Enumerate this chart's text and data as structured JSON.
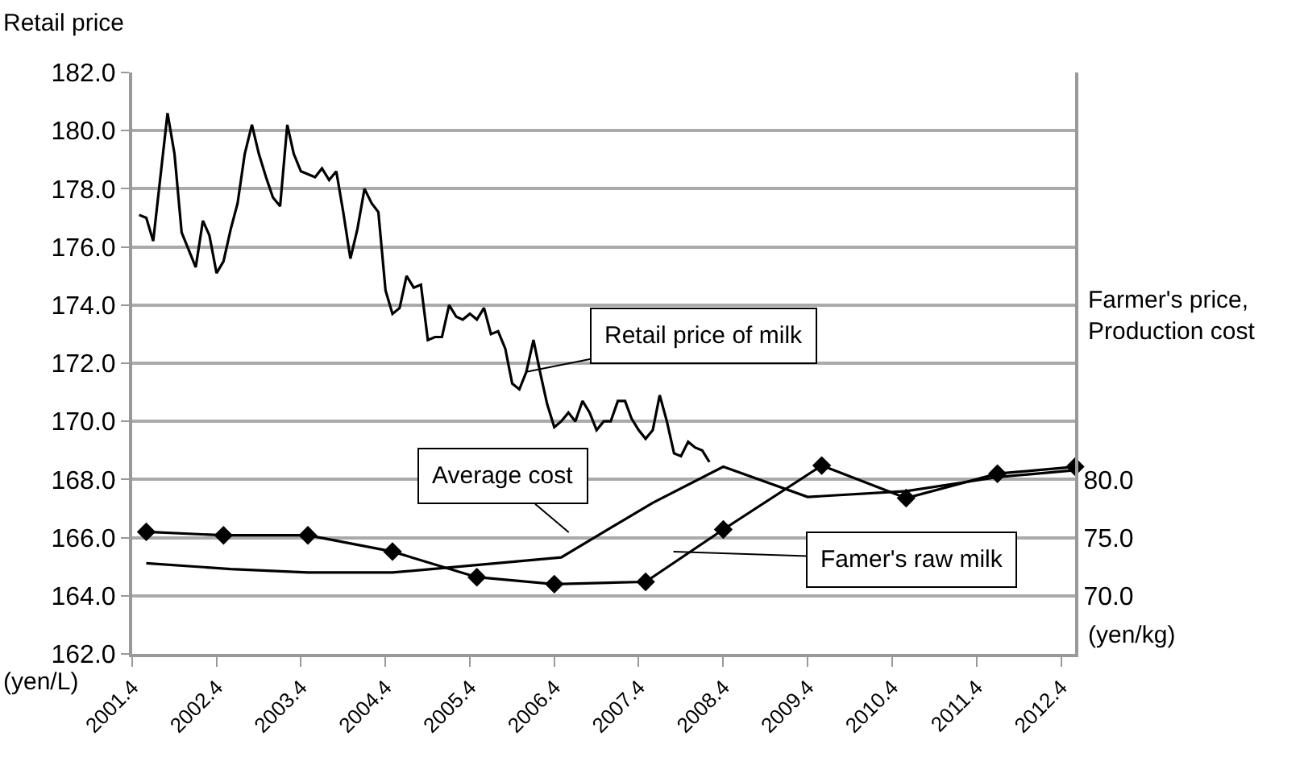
{
  "chart_data": {
    "type": "line",
    "ylabel": "Retail price",
    "y2label": "Farmer's price,\nProduction cost",
    "annotations": [
      {
        "text": "Retail price of milk",
        "x": "2005-12",
        "y": 171.7
      },
      "Average cost",
      "Famer's raw milk",
      "(yen/L)",
      "(yen/kg)"
    ],
    "xlim": [
      "2001-04",
      "2012-06"
    ],
    "xticks": [
      {
        "value": "2001-04",
        "label": "2001.4"
      },
      {
        "value": "2002-04",
        "label": "2002.4"
      },
      {
        "value": "2003-04",
        "label": "2003.4"
      },
      {
        "value": "2004-04",
        "label": "2004.4"
      },
      {
        "value": "2005-04",
        "label": "2005.4"
      },
      {
        "value": "2006-04",
        "label": "2006.4"
      },
      {
        "value": "2007-04",
        "label": "2007.4"
      },
      {
        "value": "2008-04",
        "label": "2008.4"
      },
      {
        "value": "2009-04",
        "label": "2009.4"
      },
      {
        "value": "2010-04",
        "label": "2010.4"
      },
      {
        "value": "2011-04",
        "label": "2011.4"
      },
      {
        "value": "2012-04",
        "label": "2012.4"
      }
    ],
    "ylim": [
      162,
      182
    ],
    "yticks": [
      {
        "value": 162,
        "label": "162.0"
      },
      {
        "value": 164,
        "label": "164.0"
      },
      {
        "value": 166,
        "label": "166.0"
      },
      {
        "value": 168,
        "label": "168.0"
      },
      {
        "value": 170,
        "label": "170.0"
      },
      {
        "value": 172,
        "label": "172.0"
      },
      {
        "value": 174,
        "label": "174.0"
      },
      {
        "value": 176,
        "label": "176.0"
      },
      {
        "value": 178,
        "label": "178.0"
      },
      {
        "value": 180,
        "label": "180.0"
      },
      {
        "value": 182,
        "label": "182.0"
      }
    ],
    "y2lim": [
      65,
      115
    ],
    "y2ticks": [
      {
        "value": 70,
        "label": "70.0"
      },
      {
        "value": 75,
        "label": "75.0"
      },
      {
        "value": 80,
        "label": "80.0"
      }
    ],
    "grid": "y",
    "series": [
      {
        "color": "#000000",
        "marker": "none",
        "x": [
          "2001-05",
          "2001-06",
          "2001-07",
          "2001-09",
          "2001-10",
          "2001-11",
          "2002-01",
          "2002-02",
          "2002-03",
          "2002-04",
          "2002-05",
          "2002-06",
          "2002-07",
          "2002-08",
          "2002-09",
          "2002-10",
          "2002-11",
          "2002-12",
          "2003-01",
          "2003-02",
          "2003-03",
          "2003-04",
          "2003-05",
          "2003-06",
          "2003-07",
          "2003-08",
          "2003-09",
          "2003-10",
          "2003-11",
          "2003-12",
          "2004-01",
          "2004-02",
          "2004-03",
          "2004-04",
          "2004-05",
          "2004-06",
          "2004-07",
          "2004-08",
          "2004-09",
          "2004-10",
          "2004-11",
          "2004-12",
          "2005-01",
          "2005-02",
          "2005-03",
          "2005-04",
          "2005-05",
          "2005-06",
          "2005-07",
          "2005-08",
          "2005-09",
          "2005-10",
          "2005-11",
          "2005-12",
          "2006-01",
          "2006-02",
          "2006-03",
          "2006-04",
          "2006-05",
          "2006-06",
          "2006-07",
          "2006-08",
          "2006-09",
          "2006-10",
          "2006-11",
          "2006-12",
          "2007-01",
          "2007-02",
          "2007-03",
          "2007-04",
          "2007-05",
          "2007-06",
          "2007-07",
          "2007-08",
          "2007-09",
          "2007-10",
          "2007-11",
          "2007-12",
          "2008-01",
          "2008-02"
        ],
        "values": [
          177.1,
          177.0,
          176.2,
          180.6,
          179.2,
          176.5,
          175.3,
          176.9,
          176.4,
          175.1,
          175.5,
          176.6,
          177.5,
          179.2,
          180.2,
          179.2,
          178.4,
          177.7,
          177.4,
          180.2,
          179.2,
          178.6,
          178.5,
          178.4,
          178.7,
          178.3,
          178.6,
          177.2,
          175.6,
          176.6,
          178.0,
          177.5,
          177.2,
          174.5,
          173.7,
          173.9,
          175.0,
          174.6,
          174.7,
          172.8,
          172.9,
          172.9,
          174.0,
          173.6,
          173.5,
          173.7,
          173.5,
          173.9,
          173.0,
          173.1,
          172.5,
          171.3,
          171.1,
          171.7,
          172.8,
          171.6,
          170.6,
          169.8,
          170.0,
          170.3,
          170.0,
          170.7,
          170.3,
          169.7,
          170.0,
          170.0,
          170.7,
          170.7,
          170.1,
          169.7,
          169.4,
          169.7,
          170.9,
          170.0,
          168.9,
          168.8,
          169.3,
          169.1,
          169.0,
          168.6
        ]
      },
      {
        "color": "#000000",
        "marker": "none",
        "axis": "y2",
        "x": [
          "2001-06",
          "2002-06",
          "2003-05",
          "2004-05",
          "2006-05",
          "2007-06",
          "2008-04",
          "2009-04",
          "2010-06",
          "2011-07",
          "2012-06"
        ],
        "values": [
          72.8,
          72.3,
          72.0,
          72.0,
          73.3,
          78.0,
          81.1,
          78.5,
          79.0,
          80.2,
          80.8
        ]
      },
      {
        "color": "#000000",
        "marker": "diamond",
        "axis": "y2",
        "x": [
          "2001-06",
          "2002-05",
          "2003-05",
          "2004-05",
          "2005-05",
          "2006-04",
          "2007-05",
          "2008-04",
          "2009-06",
          "2010-06",
          "2011-07",
          "2012-06"
        ],
        "values": [
          75.5,
          75.2,
          75.2,
          73.8,
          71.6,
          71.0,
          71.2,
          75.7,
          81.2,
          78.4,
          80.5,
          81.1
        ]
      }
    ]
  }
}
